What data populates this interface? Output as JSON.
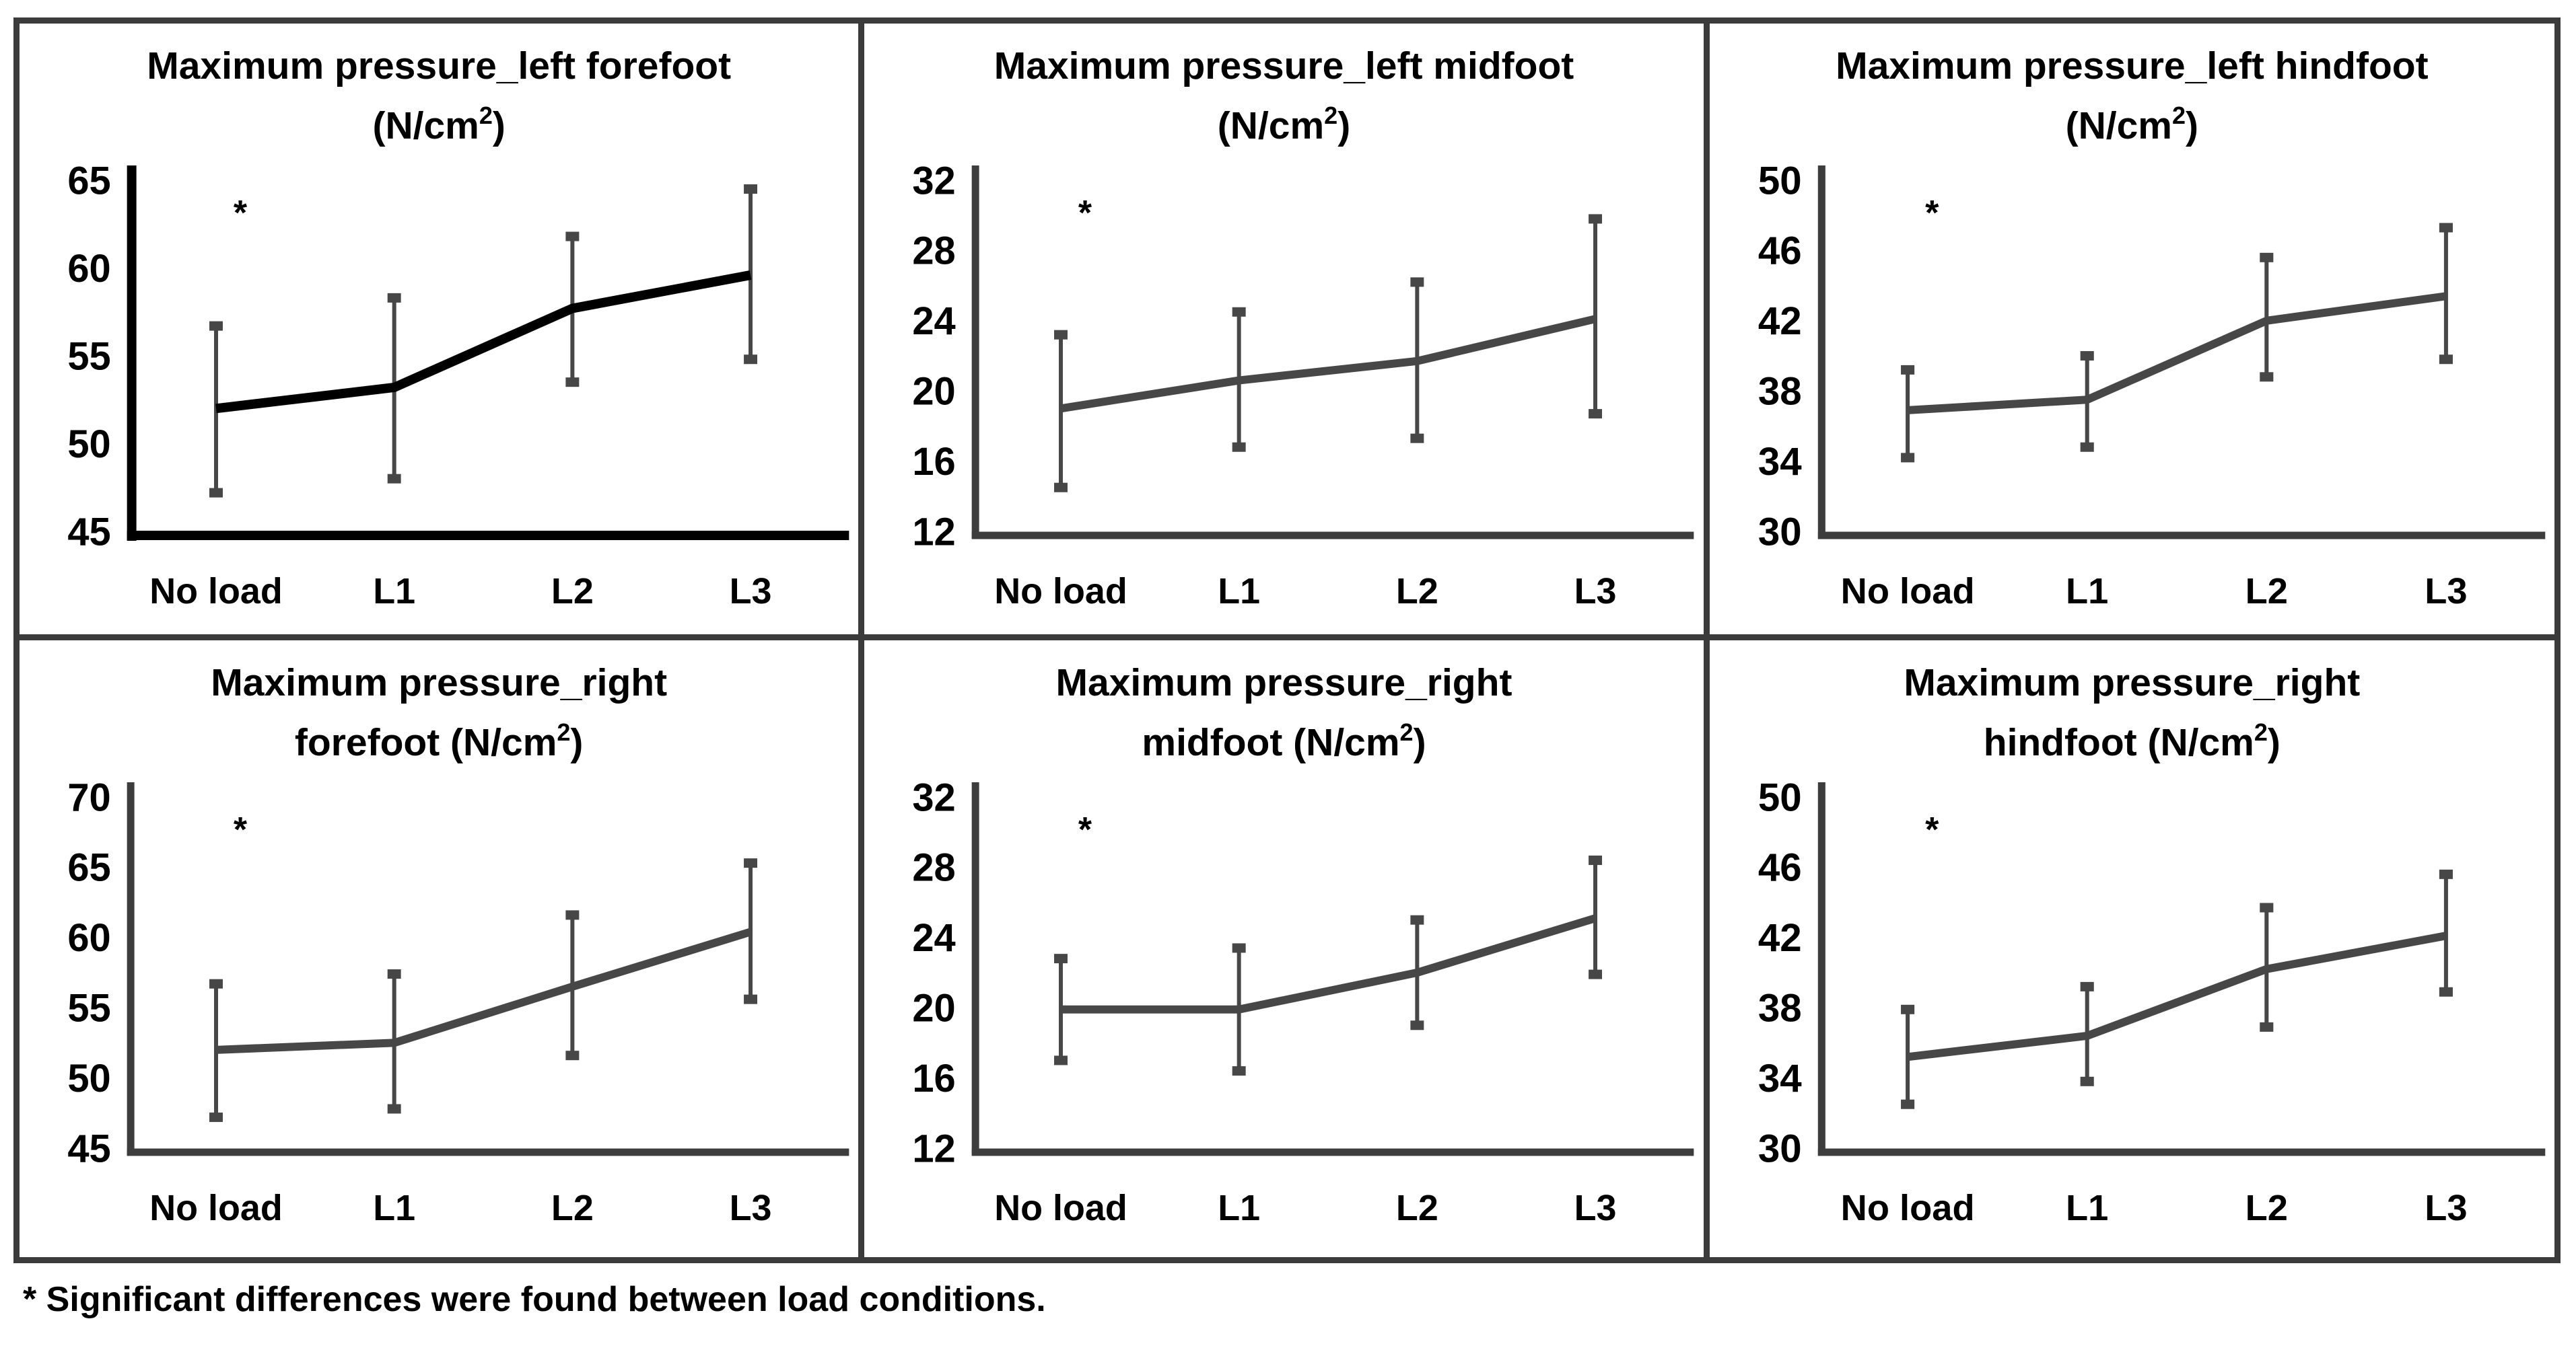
{
  "figure": {
    "footnote": "* Significant differences were found between load conditions.",
    "colors": {
      "panel_border": "#3b3b3b",
      "axis_gray": "#3d3d3d",
      "line_gray": "#474747",
      "line_black": "#000000",
      "error_bar": "#474747",
      "text": "#000000",
      "background": "#ffffff"
    }
  },
  "chart_data": [
    {
      "type": "line",
      "title": "Maximum pressure_left forefoot (N/cm2)",
      "title_line1": "Maximum pressure_left forefoot",
      "title_line2_prefix": "(N/cm",
      "title_line2_sup": "2",
      "title_line2_suffix": ")",
      "categories": [
        "No load",
        "L1",
        "L2",
        "L3"
      ],
      "series": [
        {
          "name": "mean",
          "values": [
            52.0,
            53.2,
            57.7,
            59.6
          ]
        },
        {
          "name": "lower_error",
          "values": [
            47.2,
            48.0,
            53.5,
            54.8
          ]
        },
        {
          "name": "upper_error",
          "values": [
            56.7,
            58.3,
            61.8,
            64.5
          ]
        }
      ],
      "ylim": [
        45,
        65
      ],
      "yticks": [
        45,
        50,
        55,
        60,
        65
      ],
      "xlabel": "",
      "ylabel": "",
      "grid": false,
      "legend": false,
      "annotation": "*",
      "line_color": "#000000",
      "axis_color": "#000000",
      "error_color": "#474747",
      "line_width": 14,
      "axis_width": 14
    },
    {
      "type": "line",
      "title": "Maximum pressure_left midfoot (N/cm2)",
      "title_line1": "Maximum pressure_left midfoot",
      "title_line2_prefix": "(N/cm",
      "title_line2_sup": "2",
      "title_line2_suffix": ")",
      "categories": [
        "No load",
        "L1",
        "L2",
        "L3"
      ],
      "series": [
        {
          "name": "mean",
          "values": [
            19.0,
            20.6,
            21.7,
            24.1
          ]
        },
        {
          "name": "lower_error",
          "values": [
            14.5,
            16.8,
            17.3,
            18.7
          ]
        },
        {
          "name": "upper_error",
          "values": [
            23.2,
            24.5,
            26.2,
            29.8
          ]
        }
      ],
      "ylim": [
        12,
        32
      ],
      "yticks": [
        12,
        16,
        20,
        24,
        28,
        32
      ],
      "xlabel": "",
      "ylabel": "",
      "grid": false,
      "legend": false,
      "annotation": "*",
      "line_color": "#474747",
      "axis_color": "#3d3d3d",
      "error_color": "#474747",
      "line_width": 12,
      "axis_width": 11
    },
    {
      "type": "line",
      "title": "Maximum pressure_left hindfoot (N/cm2)",
      "title_line1": "Maximum pressure_left hindfoot",
      "title_line2_prefix": "(N/cm",
      "title_line2_sup": "2",
      "title_line2_suffix": ")",
      "categories": [
        "No load",
        "L1",
        "L2",
        "L3"
      ],
      "series": [
        {
          "name": "mean",
          "values": [
            36.9,
            37.5,
            42.0,
            43.4
          ]
        },
        {
          "name": "lower_error",
          "values": [
            34.2,
            34.8,
            38.8,
            39.8
          ]
        },
        {
          "name": "upper_error",
          "values": [
            39.2,
            40.0,
            45.6,
            47.3
          ]
        }
      ],
      "ylim": [
        30,
        50
      ],
      "yticks": [
        30,
        34,
        38,
        42,
        46,
        50
      ],
      "xlabel": "",
      "ylabel": "",
      "grid": false,
      "legend": false,
      "annotation": "*",
      "line_color": "#474747",
      "axis_color": "#3d3d3d",
      "error_color": "#474747",
      "line_width": 12,
      "axis_width": 11
    },
    {
      "type": "line",
      "title": "Maximum pressure_right forefoot (N/cm2)",
      "title_line1": "Maximum pressure_right",
      "title_line2_prefix": "forefoot (N/cm",
      "title_line2_sup": "2",
      "title_line2_suffix": ")",
      "categories": [
        "No load",
        "L1",
        "L2",
        "L3"
      ],
      "series": [
        {
          "name": "mean",
          "values": [
            52.0,
            52.5,
            56.5,
            60.4
          ]
        },
        {
          "name": "lower_error",
          "values": [
            47.2,
            47.8,
            51.6,
            55.6
          ]
        },
        {
          "name": "upper_error",
          "values": [
            56.7,
            57.4,
            61.6,
            65.3
          ]
        }
      ],
      "ylim": [
        45,
        70
      ],
      "yticks": [
        45,
        50,
        55,
        60,
        65,
        70
      ],
      "xlabel": "",
      "ylabel": "",
      "grid": false,
      "legend": false,
      "annotation": "*",
      "line_color": "#474747",
      "axis_color": "#3d3d3d",
      "error_color": "#474747",
      "line_width": 12,
      "axis_width": 11
    },
    {
      "type": "line",
      "title": "Maximum pressure_right midfoot (N/cm2)",
      "title_line1": "Maximum pressure_right",
      "title_line2_prefix": "midfoot (N/cm",
      "title_line2_sup": "2",
      "title_line2_suffix": ")",
      "categories": [
        "No load",
        "L1",
        "L2",
        "L3"
      ],
      "series": [
        {
          "name": "mean",
          "values": [
            19.9,
            19.9,
            22.0,
            25.1
          ]
        },
        {
          "name": "lower_error",
          "values": [
            17.0,
            16.4,
            19.0,
            21.9
          ]
        },
        {
          "name": "upper_error",
          "values": [
            22.8,
            23.4,
            25.0,
            28.4
          ]
        }
      ],
      "ylim": [
        12,
        32
      ],
      "yticks": [
        12,
        16,
        20,
        24,
        28,
        32
      ],
      "xlabel": "",
      "ylabel": "",
      "grid": false,
      "legend": false,
      "annotation": "*",
      "line_color": "#474747",
      "axis_color": "#3d3d3d",
      "error_color": "#474747",
      "line_width": 12,
      "axis_width": 11
    },
    {
      "type": "line",
      "title": "Maximum pressure_right hindfoot (N/cm2)",
      "title_line1": "Maximum pressure_right",
      "title_line2_prefix": "hindfoot (N/cm",
      "title_line2_sup": "2",
      "title_line2_suffix": ")",
      "categories": [
        "No load",
        "L1",
        "L2",
        "L3"
      ],
      "series": [
        {
          "name": "mean",
          "values": [
            35.2,
            36.4,
            40.2,
            42.1
          ]
        },
        {
          "name": "lower_error",
          "values": [
            32.5,
            33.8,
            36.9,
            38.9
          ]
        },
        {
          "name": "upper_error",
          "values": [
            37.9,
            39.2,
            43.7,
            45.6
          ]
        }
      ],
      "ylim": [
        30,
        50
      ],
      "yticks": [
        30,
        34,
        38,
        42,
        46,
        50
      ],
      "xlabel": "",
      "ylabel": "",
      "grid": false,
      "legend": false,
      "annotation": "*",
      "line_color": "#474747",
      "axis_color": "#3d3d3d",
      "error_color": "#474747",
      "line_width": 12,
      "axis_width": 11
    }
  ]
}
